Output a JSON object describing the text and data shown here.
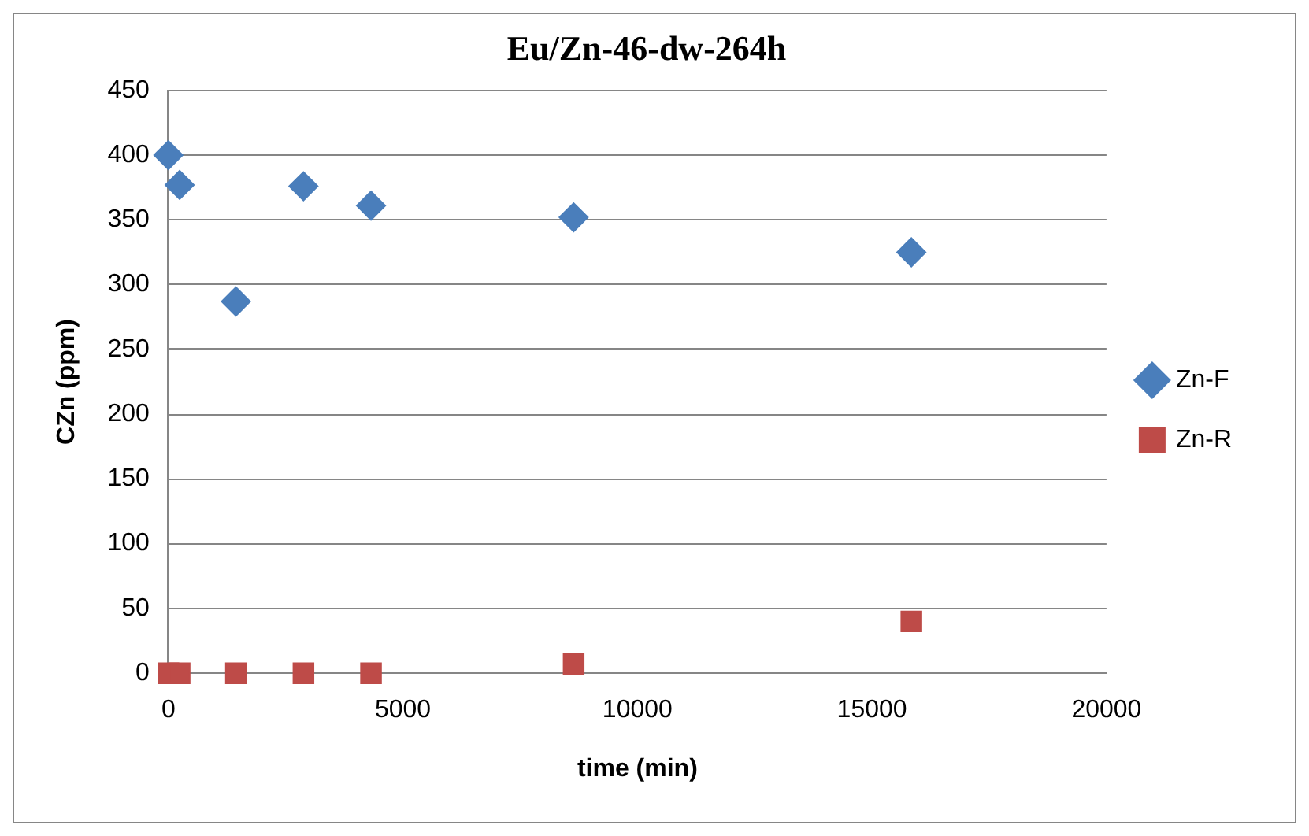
{
  "chart_data": {
    "type": "scatter",
    "title": "Eu/Zn-46-dw-264h",
    "xlabel": "time (min)",
    "ylabel": "CZn (ppm)",
    "xlim": [
      0,
      20000
    ],
    "xticks": [
      0,
      5000,
      10000,
      15000,
      20000
    ],
    "ylim": [
      0,
      450
    ],
    "yticks": [
      0,
      50,
      100,
      150,
      200,
      250,
      300,
      350,
      400,
      450
    ],
    "grid": "y",
    "legend": "right",
    "series": [
      {
        "name": "Zn-F",
        "color": "#4a7ebb",
        "marker": "diamond",
        "x": [
          0,
          240,
          1440,
          2880,
          4320,
          8640,
          15840
        ],
        "values": [
          400,
          377,
          287,
          376,
          361,
          352,
          325
        ]
      },
      {
        "name": "Zn-R",
        "color": "#be4b48",
        "marker": "square",
        "x": [
          0,
          240,
          1440,
          2880,
          4320,
          8640,
          15840
        ],
        "values": [
          0,
          0,
          0,
          0,
          0,
          7,
          40
        ]
      }
    ]
  }
}
